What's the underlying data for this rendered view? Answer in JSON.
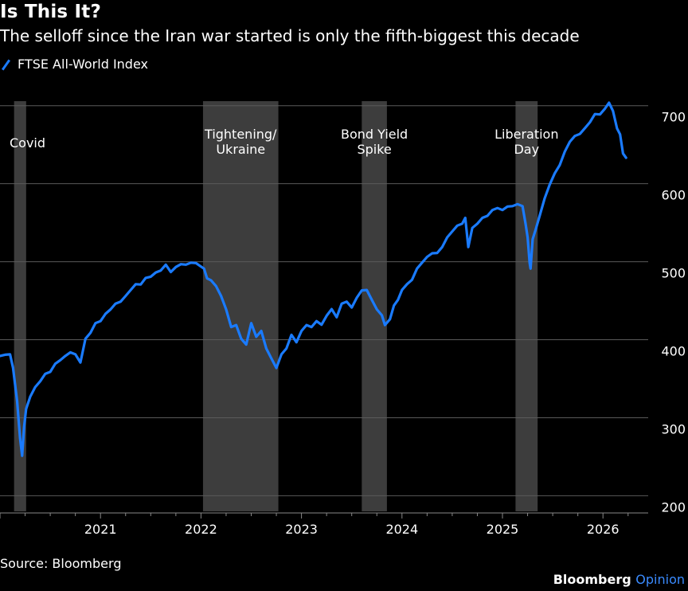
{
  "chart_data": {
    "type": "line",
    "title": "Is This It?",
    "subtitle": "The selloff since the Iran war started is only the fifth-biggest this decade",
    "legend": [
      "FTSE All-World Index"
    ],
    "series": [
      {
        "name": "FTSE All-World Index",
        "color": "#1a7bff",
        "x": [
          2020.0,
          2020.05,
          2020.1,
          2020.13,
          2020.17,
          2020.2,
          2020.22,
          2020.24,
          2020.26,
          2020.3,
          2020.35,
          2020.4,
          2020.45,
          2020.5,
          2020.55,
          2020.6,
          2020.65,
          2020.7,
          2020.75,
          2020.8,
          2020.85,
          2020.9,
          2020.95,
          2021.0,
          2021.05,
          2021.1,
          2021.15,
          2021.2,
          2021.25,
          2021.3,
          2021.35,
          2021.4,
          2021.45,
          2021.5,
          2021.55,
          2021.6,
          2021.65,
          2021.7,
          2021.75,
          2021.8,
          2021.85,
          2021.9,
          2021.95,
          2022.0,
          2022.03,
          2022.06,
          2022.1,
          2022.15,
          2022.2,
          2022.25,
          2022.3,
          2022.35,
          2022.4,
          2022.45,
          2022.5,
          2022.55,
          2022.6,
          2022.65,
          2022.7,
          2022.75,
          2022.8,
          2022.85,
          2022.9,
          2022.95,
          2023.0,
          2023.05,
          2023.1,
          2023.15,
          2023.2,
          2023.25,
          2023.3,
          2023.35,
          2023.4,
          2023.45,
          2023.5,
          2023.55,
          2023.6,
          2023.65,
          2023.7,
          2023.75,
          2023.8,
          2023.83,
          2023.88,
          2023.92,
          2023.96,
          2024.0,
          2024.05,
          2024.1,
          2024.15,
          2024.2,
          2024.25,
          2024.3,
          2024.35,
          2024.4,
          2024.45,
          2024.5,
          2024.55,
          2024.6,
          2024.63,
          2024.66,
          2024.7,
          2024.75,
          2024.8,
          2024.85,
          2024.9,
          2024.95,
          2025.0,
          2025.05,
          2025.1,
          2025.15,
          2025.2,
          2025.23,
          2025.25,
          2025.27,
          2025.28,
          2025.3,
          2025.33,
          2025.37,
          2025.42,
          2025.47,
          2025.52,
          2025.57,
          2025.62,
          2025.67,
          2025.72,
          2025.77,
          2025.82,
          2025.87,
          2025.92,
          2025.97,
          2026.02,
          2026.06,
          2026.1,
          2026.14,
          2026.17,
          2026.2,
          2026.23
        ],
        "values": [
          378,
          382,
          380,
          365,
          320,
          275,
          250,
          290,
          310,
          328,
          338,
          348,
          355,
          360,
          368,
          375,
          378,
          385,
          380,
          372,
          400,
          410,
          420,
          425,
          432,
          440,
          445,
          450,
          455,
          465,
          470,
          472,
          478,
          482,
          485,
          490,
          495,
          488,
          492,
          498,
          495,
          500,
          497,
          495,
          490,
          480,
          475,
          470,
          455,
          440,
          415,
          420,
          400,
          395,
          420,
          405,
          410,
          390,
          375,
          365,
          380,
          390,
          405,
          398,
          410,
          420,
          415,
          425,
          418,
          432,
          438,
          430,
          445,
          450,
          440,
          455,
          462,
          465,
          450,
          440,
          430,
          420,
          425,
          445,
          450,
          465,
          470,
          478,
          490,
          500,
          505,
          512,
          510,
          520,
          530,
          540,
          545,
          550,
          555,
          520,
          542,
          550,
          555,
          560,
          565,
          570,
          565,
          572,
          570,
          575,
          570,
          550,
          530,
          500,
          490,
          530,
          540,
          560,
          580,
          600,
          612,
          625,
          640,
          655,
          660,
          665,
          670,
          680,
          688,
          690,
          695,
          705,
          692,
          672,
          662,
          640,
          632
        ]
      }
    ],
    "xlim": [
      2020.0,
      2026.45
    ],
    "ylim": [
      180,
      715
    ],
    "yticks": [
      200,
      300,
      400,
      500,
      600,
      700
    ],
    "xticks": [
      {
        "value": 2021,
        "label": "2021"
      },
      {
        "value": 2022,
        "label": "2022"
      },
      {
        "value": 2023,
        "label": "2023"
      },
      {
        "value": 2024,
        "label": "2024"
      },
      {
        "value": 2025,
        "label": "2025"
      },
      {
        "value": 2026,
        "label": "2026"
      }
    ],
    "shaded_periods": [
      {
        "start": 2020.14,
        "end": 2020.26,
        "label": "Covid"
      },
      {
        "start": 2022.02,
        "end": 2022.77,
        "label": "Tightening/\nUkraine"
      },
      {
        "start": 2023.6,
        "end": 2023.85,
        "label": "Bond Yield\nSpike"
      },
      {
        "start": 2025.13,
        "end": 2025.35,
        "label": "Liberation\nDay"
      }
    ],
    "grid": true,
    "legend_position": "top-left"
  },
  "footer": {
    "source": "Source: Bloomberg",
    "brand": "Bloomberg",
    "brand_suffix": "Opinion"
  }
}
